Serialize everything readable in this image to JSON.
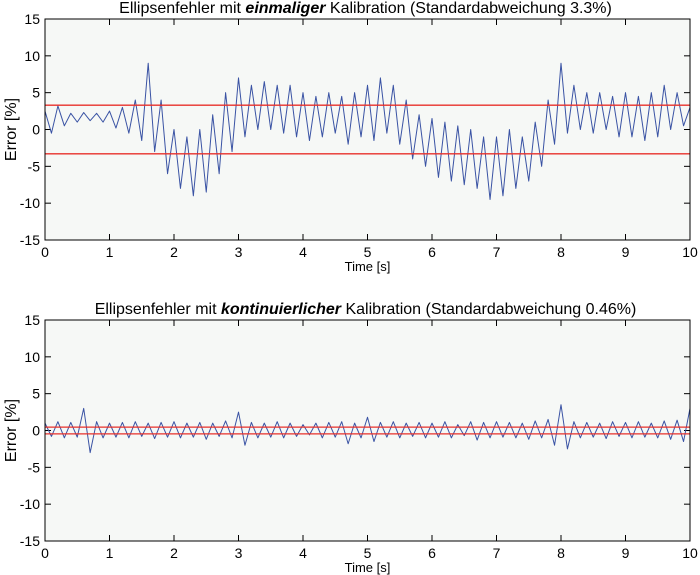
{
  "chart_data": [
    {
      "type": "line",
      "title": [
        "Ellipsenfehler mit",
        "einmaliger",
        "Kalibration (Standardabweichung 3.3%)"
      ],
      "title_emphasis": 1,
      "xlabel": "Time [s]",
      "ylabel": "Error [%]",
      "x": [
        0,
        0.1,
        0.2,
        0.3,
        0.4,
        0.5,
        0.6,
        0.7,
        0.8,
        0.9,
        1,
        1.1,
        1.2,
        1.3,
        1.4,
        1.5,
        1.6,
        1.7,
        1.8,
        1.9,
        2,
        2.1,
        2.2,
        2.3,
        2.4,
        2.5,
        2.6,
        2.7,
        2.8,
        2.9,
        3,
        3.1,
        3.2,
        3.3,
        3.4,
        3.5,
        3.6,
        3.7,
        3.8,
        3.9,
        4,
        4.1,
        4.2,
        4.3,
        4.4,
        4.5,
        4.6,
        4.7,
        4.8,
        4.9,
        5,
        5.1,
        5.2,
        5.3,
        5.4,
        5.5,
        5.6,
        5.7,
        5.8,
        5.9,
        6,
        6.1,
        6.2,
        6.3,
        6.4,
        6.5,
        6.6,
        6.7,
        6.8,
        6.9,
        7,
        7.1,
        7.2,
        7.3,
        7.4,
        7.5,
        7.6,
        7.7,
        7.8,
        7.9,
        8,
        8.1,
        8.2,
        8.3,
        8.4,
        8.5,
        8.6,
        8.7,
        8.8,
        8.9,
        9,
        9.1,
        9.2,
        9.3,
        9.4,
        9.5,
        9.6,
        9.7,
        9.8,
        9.9,
        10
      ],
      "series": [
        {
          "color": "#3a53a4",
          "values": [
            2.5,
            -0.5,
            3.2,
            0.5,
            2.2,
            1.0,
            2.3,
            1.2,
            2.2,
            1.0,
            2.5,
            0.2,
            3,
            -0.5,
            4,
            -1.5,
            9,
            -3,
            4,
            -6,
            0,
            -8,
            -1,
            -9,
            0,
            -8.5,
            2,
            -6,
            5,
            -3,
            7,
            -1,
            6,
            0,
            6.5,
            0,
            6,
            -0.5,
            6,
            -1,
            5,
            -1.5,
            4.5,
            -1,
            5,
            -0.5,
            4.5,
            -2,
            5,
            -1,
            6,
            -1.5,
            7,
            -0.5,
            6,
            -2,
            4,
            -4,
            2,
            -5,
            1.5,
            -6.5,
            1,
            -7,
            0.5,
            -7.5,
            0,
            -8,
            -1,
            -9.5,
            -1,
            -9,
            0,
            -8,
            -1,
            -7,
            1,
            -5,
            4,
            -2,
            9,
            -0.5,
            6,
            0,
            5,
            -0.5,
            5,
            0,
            4.5,
            -1,
            5,
            -1,
            4.5,
            -1.5,
            5,
            -1,
            6,
            0,
            5,
            0.5,
            3
          ]
        }
      ],
      "hlines": [
        3.3,
        -3.3
      ],
      "hline_color": "#e8302a",
      "xlim": [
        0,
        10
      ],
      "xticks": [
        0,
        1,
        2,
        3,
        4,
        5,
        6,
        7,
        8,
        9,
        10
      ],
      "ylim": [
        -15,
        15
      ],
      "yticks": [
        -15,
        -10,
        -5,
        0,
        5,
        10,
        15
      ]
    },
    {
      "type": "line",
      "title": [
        "Ellipsenfehler mit",
        "kontinuierlicher",
        "Kalibration (Standardabweichung 0.46%)"
      ],
      "title_emphasis": 1,
      "xlabel": "Time [s]",
      "ylabel": "Error [%]",
      "x": [
        0,
        0.1,
        0.2,
        0.3,
        0.4,
        0.5,
        0.6,
        0.7,
        0.8,
        0.9,
        1,
        1.1,
        1.2,
        1.3,
        1.4,
        1.5,
        1.6,
        1.7,
        1.8,
        1.9,
        2,
        2.1,
        2.2,
        2.3,
        2.4,
        2.5,
        2.6,
        2.7,
        2.8,
        2.9,
        3,
        3.1,
        3.2,
        3.3,
        3.4,
        3.5,
        3.6,
        3.7,
        3.8,
        3.9,
        4,
        4.1,
        4.2,
        4.3,
        4.4,
        4.5,
        4.6,
        4.7,
        4.8,
        4.9,
        5,
        5.1,
        5.2,
        5.3,
        5.4,
        5.5,
        5.6,
        5.7,
        5.8,
        5.9,
        6,
        6.1,
        6.2,
        6.3,
        6.4,
        6.5,
        6.6,
        6.7,
        6.8,
        6.9,
        7,
        7.1,
        7.2,
        7.3,
        7.4,
        7.5,
        7.6,
        7.7,
        7.8,
        7.9,
        8,
        8.1,
        8.2,
        8.3,
        8.4,
        8.5,
        8.6,
        8.7,
        8.8,
        8.9,
        9,
        9.1,
        9.2,
        9.3,
        9.4,
        9.5,
        9.6,
        9.7,
        9.8,
        9.9,
        10
      ],
      "series": [
        {
          "color": "#3a53a4",
          "values": [
            1,
            -0.8,
            1.2,
            -1,
            1.1,
            -0.9,
            3,
            -3,
            1.2,
            -1,
            1,
            -0.9,
            1.1,
            -1,
            1.2,
            -0.8,
            1,
            -1.1,
            1.1,
            -0.9,
            1.2,
            -1,
            1,
            -0.9,
            1.1,
            -1.2,
            1,
            -0.8,
            1.3,
            -1,
            2.5,
            -2,
            1.1,
            -1,
            1,
            -0.9,
            1.2,
            -1,
            1,
            -0.8,
            0.8,
            -0.6,
            1,
            -1,
            1.1,
            -0.9,
            1.2,
            -1.8,
            1,
            -1,
            1.8,
            -1.5,
            1.1,
            -0.9,
            1.2,
            -1,
            1,
            -0.8,
            1.1,
            -1,
            1,
            -0.9,
            1.2,
            -1,
            0.8,
            -0.7,
            1.2,
            -1.3,
            1.1,
            -1,
            1.2,
            -0.9,
            1.1,
            -1,
            1,
            -1.2,
            1.3,
            -1,
            1.5,
            -2,
            3.5,
            -2.5,
            1.2,
            -1,
            1.1,
            -0.9,
            1,
            -1.1,
            1.2,
            -0.8,
            1.1,
            -1,
            1.2,
            -0.9,
            1,
            -1,
            1.3,
            -1.2,
            1.4,
            -1.5,
            3
          ]
        }
      ],
      "hlines": [
        0.46,
        -0.46
      ],
      "hline_color": "#e8302a",
      "xlim": [
        0,
        10
      ],
      "xticks": [
        0,
        1,
        2,
        3,
        4,
        5,
        6,
        7,
        8,
        9,
        10
      ],
      "ylim": [
        -15,
        15
      ],
      "yticks": [
        -15,
        -10,
        -5,
        0,
        5,
        10,
        15
      ]
    }
  ]
}
